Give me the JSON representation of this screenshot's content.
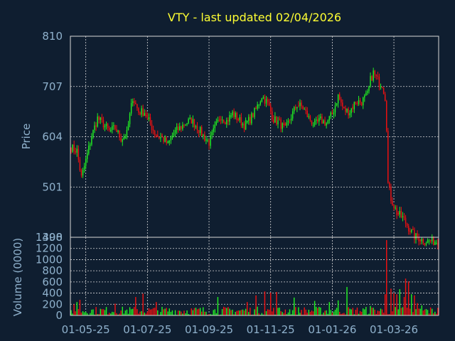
{
  "chart_data": {
    "type": "candlestick",
    "title": "VTY - last updated 02/04/2026",
    "colors": {
      "background": "#0f1e30",
      "up": "#22ee22",
      "down": "#ee1111",
      "grid": "#d8d8d8",
      "tick_text": "#8fb1cc",
      "title_text": "#ffff33"
    },
    "grid": true,
    "x_tick_labels": [
      "01-05-25",
      "01-07-25",
      "01-09-25",
      "01-11-25",
      "01-01-26",
      "01-03-26"
    ],
    "x_tick_index": [
      10,
      52,
      94,
      136,
      178,
      220
    ],
    "n_bars": 251,
    "price_panel": {
      "ylabel": "Price",
      "ylim": [
        398,
        810
      ],
      "yticks": [
        398,
        501,
        604,
        707,
        810
      ],
      "ytick_labels": [
        "398",
        "501",
        "604",
        "707",
        "810"
      ],
      "close_keypoints": [
        [
          0,
          582
        ],
        [
          4,
          575
        ],
        [
          7,
          520
        ],
        [
          10,
          555
        ],
        [
          14,
          605
        ],
        [
          18,
          642
        ],
        [
          22,
          630
        ],
        [
          26,
          615
        ],
        [
          30,
          622
        ],
        [
          34,
          600
        ],
        [
          38,
          610
        ],
        [
          42,
          685
        ],
        [
          46,
          655
        ],
        [
          50,
          655
        ],
        [
          54,
          630
        ],
        [
          58,
          606
        ],
        [
          62,
          602
        ],
        [
          66,
          588
        ],
        [
          70,
          612
        ],
        [
          74,
          622
        ],
        [
          78,
          632
        ],
        [
          82,
          638
        ],
        [
          86,
          624
        ],
        [
          90,
          606
        ],
        [
          94,
          592
        ],
        [
          98,
          622
        ],
        [
          102,
          646
        ],
        [
          106,
          636
        ],
        [
          110,
          652
        ],
        [
          114,
          640
        ],
        [
          118,
          628
        ],
        [
          122,
          640
        ],
        [
          126,
          660
        ],
        [
          130,
          688
        ],
        [
          134,
          672
        ],
        [
          138,
          640
        ],
        [
          142,
          632
        ],
        [
          146,
          618
        ],
        [
          150,
          646
        ],
        [
          154,
          670
        ],
        [
          158,
          664
        ],
        [
          162,
          642
        ],
        [
          166,
          628
        ],
        [
          170,
          638
        ],
        [
          174,
          632
        ],
        [
          178,
          650
        ],
        [
          182,
          688
        ],
        [
          186,
          658
        ],
        [
          190,
          656
        ],
        [
          194,
          676
        ],
        [
          198,
          676
        ],
        [
          202,
          690
        ],
        [
          204,
          720
        ],
        [
          206,
          735
        ],
        [
          210,
          715
        ],
        [
          212,
          712
        ],
        [
          214,
          685
        ],
        [
          215,
          625
        ],
        [
          216,
          508
        ],
        [
          218,
          478
        ],
        [
          222,
          448
        ],
        [
          226,
          438
        ],
        [
          230,
          418
        ],
        [
          234,
          400
        ],
        [
          238,
          395
        ],
        [
          241,
          390
        ]
      ],
      "open_keypoints": [
        [
          0,
          582
        ],
        [
          4,
          575
        ],
        [
          7,
          530
        ],
        [
          10,
          555
        ],
        [
          14,
          605
        ],
        [
          18,
          642
        ],
        [
          22,
          630
        ],
        [
          26,
          615
        ],
        [
          30,
          622
        ],
        [
          34,
          600
        ],
        [
          38,
          610
        ],
        [
          42,
          685
        ],
        [
          46,
          655
        ],
        [
          50,
          655
        ],
        [
          54,
          630
        ],
        [
          58,
          606
        ],
        [
          62,
          602
        ],
        [
          66,
          588
        ],
        [
          70,
          612
        ],
        [
          74,
          622
        ],
        [
          78,
          632
        ],
        [
          82,
          638
        ],
        [
          86,
          624
        ],
        [
          90,
          606
        ],
        [
          94,
          592
        ],
        [
          98,
          622
        ],
        [
          102,
          646
        ],
        [
          106,
          636
        ],
        [
          110,
          652
        ],
        [
          114,
          640
        ],
        [
          118,
          628
        ],
        [
          122,
          640
        ],
        [
          126,
          660
        ],
        [
          130,
          688
        ],
        [
          134,
          672
        ],
        [
          138,
          640
        ],
        [
          142,
          632
        ],
        [
          146,
          618
        ],
        [
          150,
          646
        ],
        [
          154,
          670
        ],
        [
          158,
          664
        ],
        [
          162,
          642
        ],
        [
          166,
          628
        ],
        [
          170,
          638
        ],
        [
          174,
          632
        ],
        [
          178,
          650
        ],
        [
          182,
          688
        ],
        [
          186,
          658
        ],
        [
          190,
          656
        ],
        [
          194,
          676
        ],
        [
          198,
          676
        ],
        [
          202,
          690
        ],
        [
          204,
          720
        ],
        [
          206,
          735
        ],
        [
          210,
          715
        ],
        [
          212,
          712
        ],
        [
          214,
          685
        ],
        [
          215,
          635
        ],
        [
          216,
          540
        ],
        [
          218,
          478
        ],
        [
          222,
          448
        ],
        [
          226,
          438
        ],
        [
          230,
          418
        ],
        [
          234,
          400
        ],
        [
          238,
          395
        ],
        [
          241,
          390
        ]
      ]
    },
    "volume_panel": {
      "ylabel": "Volume (0000)",
      "ylim": [
        0,
        1400
      ],
      "yticks": [
        0,
        200,
        400,
        600,
        800,
        1000,
        1200,
        1400
      ],
      "ytick_labels": [
        "0",
        "200",
        "400",
        "600",
        "800",
        "1000",
        "1200",
        "1400"
      ],
      "volume_peaks": [
        [
          2,
          200
        ],
        [
          4,
          240
        ],
        [
          6,
          280
        ],
        [
          30,
          210
        ],
        [
          44,
          330
        ],
        [
          49,
          390
        ],
        [
          58,
          240
        ],
        [
          100,
          330
        ],
        [
          120,
          240
        ],
        [
          126,
          360
        ],
        [
          132,
          430
        ],
        [
          136,
          410
        ],
        [
          140,
          420
        ],
        [
          152,
          320
        ],
        [
          166,
          260
        ],
        [
          176,
          240
        ],
        [
          182,
          270
        ],
        [
          188,
          510
        ],
        [
          204,
          170
        ],
        [
          214,
          380
        ],
        [
          215,
          1350
        ],
        [
          218,
          480
        ],
        [
          220,
          400
        ],
        [
          222,
          380
        ],
        [
          224,
          470
        ],
        [
          227,
          330
        ],
        [
          228,
          660
        ],
        [
          230,
          610
        ],
        [
          232,
          380
        ],
        [
          234,
          360
        ],
        [
          236,
          220
        ],
        [
          239,
          180
        ]
      ],
      "volume_base_range": [
        10,
        160
      ]
    }
  }
}
